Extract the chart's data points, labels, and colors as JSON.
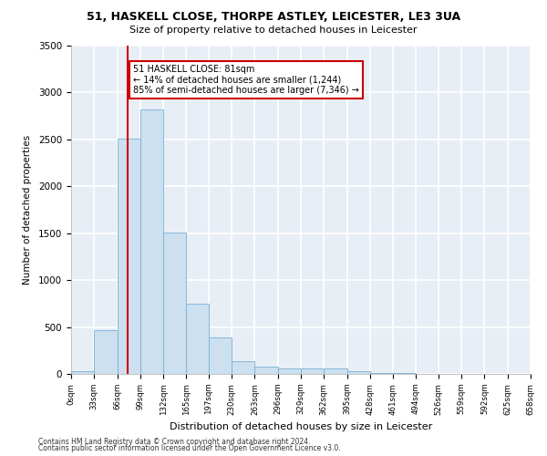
{
  "title1": "51, HASKELL CLOSE, THORPE ASTLEY, LEICESTER, LE3 3UA",
  "title2": "Size of property relative to detached houses in Leicester",
  "xlabel": "Distribution of detached houses by size in Leicester",
  "ylabel": "Number of detached properties",
  "property_size": 81,
  "annotation_line1": "51 HASKELL CLOSE: 81sqm",
  "annotation_line2": "← 14% of detached houses are smaller (1,244)",
  "annotation_line3": "85% of semi-detached houses are larger (7,346) →",
  "footnote1": "Contains HM Land Registry data © Crown copyright and database right 2024.",
  "footnote2": "Contains public sector information licensed under the Open Government Licence v3.0.",
  "bar_color": "#cce0f0",
  "bar_edge_color": "#7ab0d4",
  "line_color": "#cc0000",
  "annotation_box_color": "#cc0000",
  "bg_color": "#e8eef6",
  "grid_color": "#ffffff",
  "fig_bg_color": "#ffffff",
  "bin_edges": [
    0,
    33,
    66,
    99,
    132,
    165,
    197,
    230,
    263,
    296,
    329,
    362,
    395,
    428,
    461,
    494,
    526,
    559,
    592,
    625,
    658
  ],
  "bin_labels": [
    "0sqm",
    "33sqm",
    "66sqm",
    "99sqm",
    "132sqm",
    "165sqm",
    "197sqm",
    "230sqm",
    "263sqm",
    "296sqm",
    "329sqm",
    "362sqm",
    "395sqm",
    "428sqm",
    "461sqm",
    "494sqm",
    "526sqm",
    "559sqm",
    "592sqm",
    "625sqm",
    "658sqm"
  ],
  "bar_heights": [
    25,
    465,
    2510,
    2820,
    1510,
    745,
    390,
    140,
    75,
    55,
    55,
    60,
    30,
    10,
    5,
    0,
    0,
    0,
    0,
    0
  ],
  "ylim": [
    0,
    3500
  ],
  "yticks": [
    0,
    500,
    1000,
    1500,
    2000,
    2500,
    3000,
    3500
  ]
}
